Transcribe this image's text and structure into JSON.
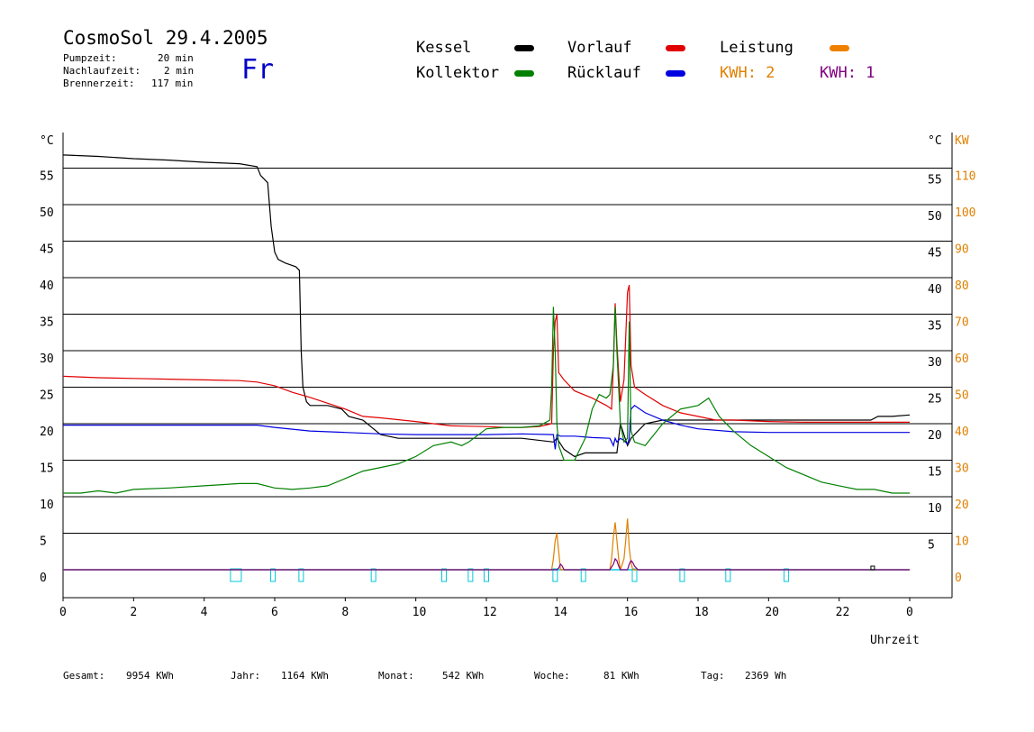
{
  "header": {
    "title": "CosmoSol 29.4.2005",
    "weekday": "Fr",
    "info": [
      {
        "label": "Pumpzeit:",
        "value": "20 min"
      },
      {
        "label": "Nachlaufzeit:",
        "value": "2 min"
      },
      {
        "label": "Brennerzeit:",
        "value": "117 min"
      }
    ]
  },
  "legend": {
    "items": [
      {
        "label": "Kessel",
        "color": "#000000"
      },
      {
        "label": "Vorlauf",
        "color": "#e00000"
      },
      {
        "label": "Leistung",
        "color": "#f08000"
      },
      {
        "label": "Kollektor",
        "color": "#008000"
      },
      {
        "label": "Rücklauf",
        "color": "#0000e0"
      }
    ],
    "kwh_labels": [
      {
        "label": "KWH: 2",
        "color": "#e08000"
      },
      {
        "label": "KWH: 1",
        "color": "#800080"
      }
    ]
  },
  "footer": {
    "items": [
      {
        "label": "Gesamt:",
        "value": "9954 KWh"
      },
      {
        "label": "Jahr:",
        "value": "1164 KWh"
      },
      {
        "label": "Monat:",
        "value": "542 KWh"
      },
      {
        "label": "Woche:",
        "value": "81 KWh"
      },
      {
        "label": "Tag:",
        "value": "2369 Wh"
      }
    ]
  },
  "chart_data": {
    "type": "line",
    "title": "CosmoSol 29.4.2005",
    "xlabel": "Uhrzeit",
    "ylabel_left": "°C",
    "ylabel_right_temp": "°C",
    "ylabel_right_power": "KW",
    "xlim": [
      0,
      24
    ],
    "ylim": [
      -4,
      57
    ],
    "x_ticks": [
      "0",
      "2",
      "4",
      "6",
      "8",
      "10",
      "12",
      "14",
      "16",
      "18",
      "20",
      "22",
      "0"
    ],
    "y_ticks": [
      0,
      5,
      10,
      15,
      20,
      25,
      30,
      35,
      40,
      45,
      50,
      55
    ],
    "power_ticks": [
      0,
      10,
      20,
      30,
      40,
      50,
      60,
      70,
      80,
      90,
      100,
      110
    ],
    "grid": true,
    "series": [
      {
        "name": "Kessel",
        "color": "#000000",
        "x": [
          0,
          1,
          2,
          3,
          4,
          5,
          5.5,
          5.6,
          5.8,
          5.9,
          6.0,
          6.1,
          6.3,
          6.6,
          6.7,
          6.75,
          6.8,
          6.9,
          7.0,
          7.5,
          7.9,
          8.1,
          8.5,
          9.0,
          9.5,
          10,
          11,
          12,
          13,
          13.9,
          14.0,
          14.2,
          14.5,
          14.8,
          15.0,
          15.5,
          15.7,
          15.8,
          16.0,
          16.1,
          16.3,
          16.5,
          17,
          18,
          19,
          20,
          21,
          22,
          22.9,
          23.1,
          23.5,
          24
        ],
        "y": [
          56.8,
          56.6,
          56.3,
          56.1,
          55.8,
          55.6,
          55.2,
          54,
          53,
          47,
          43.5,
          42.5,
          42,
          41.5,
          41,
          30,
          25,
          23,
          22.5,
          22.5,
          22,
          21,
          20.5,
          18.5,
          18,
          18,
          18,
          18,
          18,
          17.5,
          18,
          16.5,
          15.5,
          16,
          16,
          16,
          16,
          20,
          17,
          18,
          19,
          20,
          20.5,
          20.5,
          20.5,
          20.5,
          20.5,
          20.5,
          20.5,
          21,
          21,
          21.2
        ]
      },
      {
        "name": "Vorlauf",
        "color": "#e00000",
        "x": [
          0,
          1,
          2,
          3,
          4,
          5,
          5.5,
          6,
          6.5,
          7,
          7.5,
          8,
          8.5,
          9,
          10,
          11,
          12,
          12.5,
          13,
          13.5,
          13.85,
          13.9,
          13.95,
          14.0,
          14.05,
          14.2,
          14.5,
          15.0,
          15.4,
          15.55,
          15.6,
          15.65,
          15.7,
          15.8,
          15.9,
          16.0,
          16.05,
          16.1,
          16.2,
          16.5,
          17,
          17.5,
          18,
          18.5,
          19,
          20,
          21,
          22,
          23,
          24
        ],
        "y": [
          26.5,
          26.3,
          26.2,
          26.1,
          26,
          25.9,
          25.7,
          25.2,
          24.3,
          23.6,
          22.8,
          22,
          21,
          20.8,
          20.3,
          19.7,
          19.6,
          19.5,
          19.5,
          19.6,
          20,
          30,
          34,
          35,
          27,
          26,
          24.5,
          23.5,
          22.5,
          22,
          28,
          36.5,
          31,
          23,
          26,
          38,
          39,
          28,
          25,
          24,
          22.5,
          21.5,
          21,
          20.5,
          20.5,
          20.3,
          20.2,
          20.2,
          20.2,
          20.2
        ]
      },
      {
        "name": "Rücklauf",
        "color": "#0000e0",
        "x": [
          0,
          1,
          2,
          3,
          4,
          5,
          5.5,
          6,
          7,
          8,
          9,
          10,
          11,
          12,
          13,
          13.9,
          13.95,
          14.0,
          14.1,
          14.5,
          15,
          15.5,
          15.6,
          15.65,
          15.7,
          15.8,
          15.9,
          16.0,
          16.05,
          16.1,
          16.2,
          16.5,
          17,
          17.5,
          18,
          19,
          20,
          21,
          22,
          23,
          24
        ],
        "y": [
          19.8,
          19.8,
          19.8,
          19.8,
          19.8,
          19.8,
          19.8,
          19.5,
          19,
          18.8,
          18.6,
          18.5,
          18.5,
          18.5,
          18.6,
          18.5,
          16.5,
          18.5,
          18.3,
          18.3,
          18.1,
          18,
          17,
          18,
          17.5,
          18,
          17.7,
          17.2,
          18,
          22,
          22.5,
          21.5,
          20.5,
          19.8,
          19.3,
          18.9,
          18.8,
          18.8,
          18.8,
          18.8,
          18.8
        ]
      },
      {
        "name": "Kollektor",
        "color": "#008000",
        "x": [
          0,
          0.5,
          1,
          1.5,
          2,
          3,
          4,
          5,
          5.5,
          6,
          6.5,
          7,
          7.5,
          8,
          8.5,
          9,
          9.5,
          10,
          10.5,
          11,
          11.3,
          11.5,
          12,
          12.5,
          13,
          13.5,
          13.8,
          13.85,
          13.9,
          13.95,
          14.0,
          14.05,
          14.2,
          14.5,
          14.8,
          15.0,
          15.2,
          15.4,
          15.5,
          15.6,
          15.65,
          15.7,
          15.8,
          15.9,
          16.0,
          16.05,
          16.1,
          16.2,
          16.5,
          17,
          17.5,
          18,
          18.3,
          18.6,
          19,
          19.5,
          20,
          20.5,
          21,
          21.5,
          22,
          22.5,
          23,
          23.5,
          24
        ],
        "y": [
          10.5,
          10.5,
          10.8,
          10.5,
          11,
          11.2,
          11.5,
          11.8,
          11.8,
          11.2,
          11,
          11.2,
          11.5,
          12.5,
          13.5,
          14,
          14.5,
          15.5,
          17,
          17.5,
          17,
          17.5,
          19.3,
          19.5,
          19.5,
          19.7,
          20.5,
          25,
          36,
          30,
          20,
          17,
          15,
          15,
          18,
          22,
          24,
          23.5,
          24,
          28,
          36,
          30,
          20,
          17.5,
          18,
          34,
          19,
          17.5,
          17,
          20,
          22,
          22.5,
          23.5,
          21,
          19,
          17,
          15.5,
          14,
          13,
          12,
          11.5,
          11,
          11,
          10.5,
          10.5
        ]
      }
    ],
    "power_series": [
      {
        "name": "KWH: 2",
        "color": "#e08000",
        "x": [
          0,
          13.85,
          13.9,
          13.95,
          14.0,
          14.05,
          14.1,
          15.5,
          15.55,
          15.6,
          15.65,
          15.7,
          15.75,
          15.8,
          15.9,
          15.95,
          16.0,
          16.05,
          16.1,
          16.15,
          16.2,
          24
        ],
        "y": [
          0,
          0,
          3,
          8,
          10,
          5,
          0,
          0,
          3,
          9,
          13,
          8,
          3,
          0,
          3,
          8,
          14,
          6,
          2,
          0,
          0,
          0
        ]
      },
      {
        "name": "KWH: 1",
        "color": "#800080",
        "x": [
          0,
          14.0,
          14.05,
          14.1,
          14.15,
          14.2,
          15.5,
          15.6,
          15.65,
          15.7,
          15.75,
          15.8,
          16.0,
          16.05,
          16.1,
          16.15,
          16.2,
          16.3,
          24
        ],
        "y": [
          0,
          0,
          0.5,
          1.5,
          1,
          0,
          0,
          1.5,
          3,
          2.5,
          1,
          0,
          0,
          1.5,
          2.5,
          2,
          1,
          0,
          0
        ]
      }
    ],
    "annotations": "Cyan pump-activity baseline at 0 with small pulse markers"
  }
}
